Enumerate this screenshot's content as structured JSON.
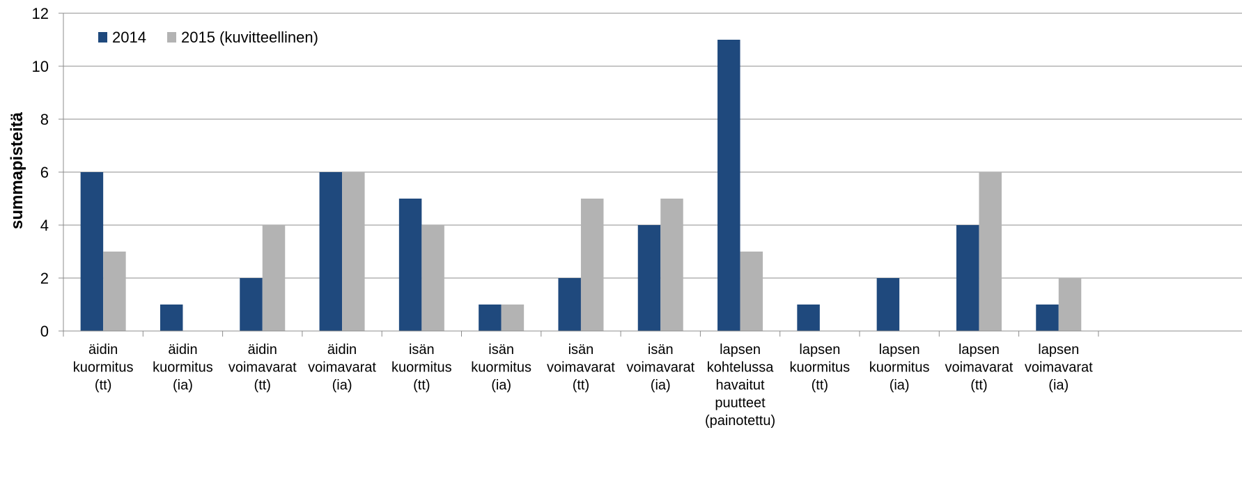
{
  "chart_data": {
    "type": "bar",
    "ylabel": "summapisteitä",
    "xlabel": "",
    "ylim": [
      0,
      12
    ],
    "yticks": [
      0,
      2,
      4,
      6,
      8,
      10,
      12
    ],
    "grid": true,
    "legend_position": "top-left",
    "categories": [
      [
        "äidin",
        "kuormitus",
        "(tt)"
      ],
      [
        "äidin",
        "kuormitus",
        "(ia)"
      ],
      [
        "äidin",
        "voimavarat",
        "(tt)"
      ],
      [
        "äidin",
        "voimavarat",
        "(ia)"
      ],
      [
        "isän",
        "kuormitus",
        "(tt)"
      ],
      [
        "isän",
        "kuormitus",
        "(ia)"
      ],
      [
        "isän",
        "voimavarat",
        "(tt)"
      ],
      [
        "isän",
        "voimavarat",
        "(ia)"
      ],
      [
        "lapsen",
        "kohtelussa",
        "havaitut",
        "puutteet",
        "(painotettu)"
      ],
      [
        "lapsen",
        "kuormitus",
        "(tt)"
      ],
      [
        "lapsen",
        "kuormitus",
        "(ia)"
      ],
      [
        "lapsen",
        "voimavarat",
        "(tt)"
      ],
      [
        "lapsen",
        "voimavarat",
        "(ia)"
      ]
    ],
    "series": [
      {
        "name": "2014",
        "color": "#1F497D",
        "values": [
          6,
          1,
          2,
          6,
          5,
          1,
          2,
          4,
          11,
          1,
          2,
          4,
          1
        ]
      },
      {
        "name": "2015 (kuvitteellinen)",
        "color": "#B3B3B3",
        "values": [
          3,
          0,
          4,
          6,
          4,
          1,
          5,
          5,
          3,
          0,
          0,
          6,
          2
        ]
      }
    ]
  }
}
